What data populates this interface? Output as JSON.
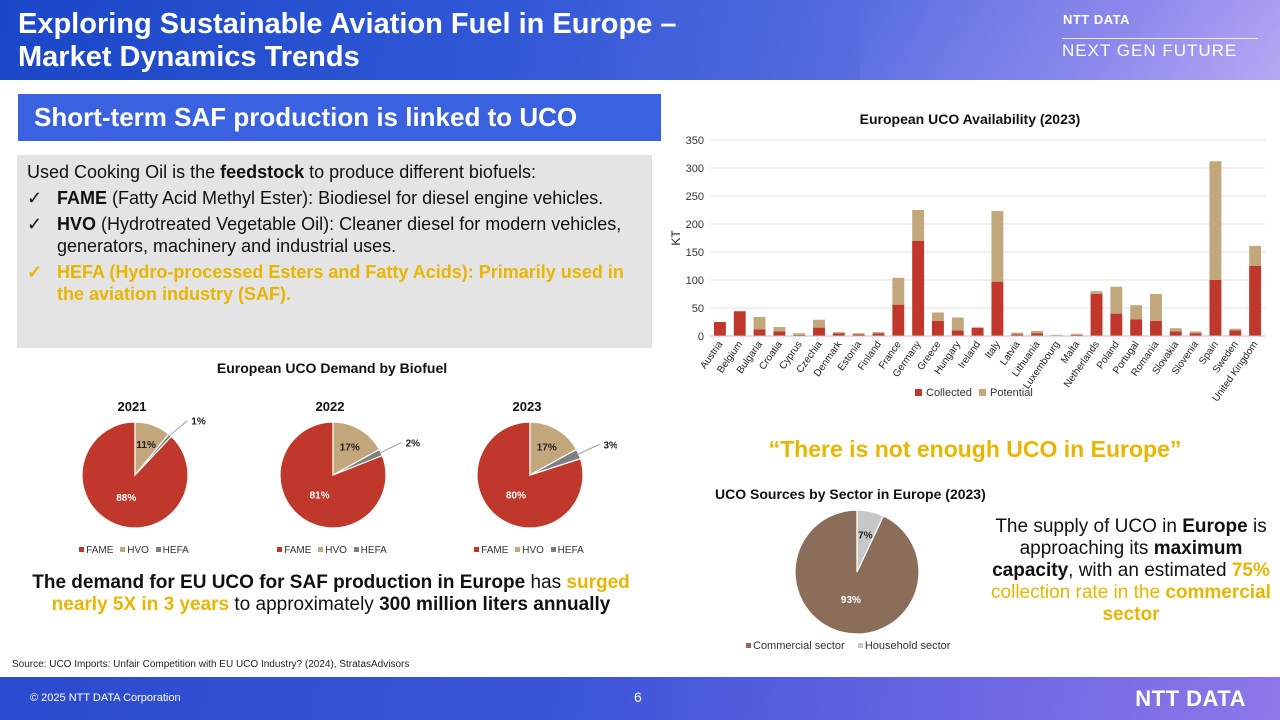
{
  "header": {
    "title_line1": "Exploring Sustainable Aviation Fuel in Europe –",
    "title_line2": "Market Dynamics Trends",
    "brand": "NTT DATA",
    "tagline": "NEXT GEN FUTURE"
  },
  "left": {
    "banner": "Short-term SAF production is linked to UCO",
    "intro_prefix": "Used Cooking Oil is the ",
    "intro_bold": "feedstock",
    "intro_suffix": " to produce different biofuels:",
    "check": "✓",
    "items": [
      {
        "bold": "FAME",
        "text": " (Fatty Acid Methyl Ester): Biodiesel for diesel engine vehicles."
      },
      {
        "bold": "HVO",
        "text": " (Hydrotreated Vegetable Oil): Cleaner diesel for modern vehicles, generators, machinery and industrial uses."
      },
      {
        "bold": "HEFA (Hydro-processed Esters and Fatty Acids): Primarily used in the aviation industry (SAF).",
        "text": ""
      }
    ],
    "demand_title": "European UCO Demand by Biofuel",
    "demand_text": {
      "p1": "The demand for EU UCO for SAF production in Europe",
      "p2": " has ",
      "p3": "surged nearly 5X in 3 years",
      "p4": " to approximately ",
      "p5": "300 million liters annually"
    },
    "source": "Source: UCO Imports: Unfair Competition with EU UCO Industry? (2024), StratasAdvisors"
  },
  "right": {
    "quote": "“There is not enough UCO in Europe”",
    "supply_text": {
      "p1": "The supply of UCO in ",
      "p2": "Europe",
      "p3": " is approaching its ",
      "p4": "maximum capacity",
      "p5": ", with an estimated ",
      "p6": "75%",
      "p7": " collection rate in the ",
      "p8": "commercial sector"
    }
  },
  "colors": {
    "red": "#c0372b",
    "tan": "#c3a77c",
    "gray": "#7f7f7f",
    "brown": "#8b6e5a",
    "light_gray": "#c7c7c7",
    "gold": "#e8b500"
  },
  "footer": {
    "copyright": "© 2025 NTT DATA Corporation",
    "page": "6",
    "logo": "NTT DATA"
  },
  "chart_data": [
    {
      "type": "bar",
      "stacked": true,
      "title": "European UCO Availability (2023)",
      "ylabel": "KT",
      "xlabel": "",
      "ylim": [
        0,
        350
      ],
      "yticks": [
        0,
        50,
        100,
        150,
        200,
        250,
        300,
        350
      ],
      "categories": [
        "Austria",
        "Belgium",
        "Bulgaria",
        "Croatia",
        "Cyprus",
        "Czechia",
        "Denmark",
        "Estonia",
        "Finland",
        "France",
        "Germany",
        "Greece",
        "Hungary",
        "Ireland",
        "Italy",
        "Latvia",
        "Lithuania",
        "Luxembourg",
        "Malta",
        "Netherlands",
        "Poland",
        "Portugal",
        "Romania",
        "Slovakia",
        "Slovenia",
        "Spain",
        "Sweden",
        "United Kingdom"
      ],
      "series": [
        {
          "name": "Collected",
          "values": [
            25,
            44,
            12,
            8,
            2,
            15,
            5,
            3,
            5,
            56,
            170,
            27,
            10,
            15,
            97,
            3,
            5,
            1,
            2,
            75,
            40,
            30,
            27,
            8,
            5,
            100,
            10,
            125
          ]
        },
        {
          "name": "Potential",
          "values": [
            0,
            1,
            22,
            8,
            3,
            14,
            2,
            2,
            2,
            48,
            55,
            15,
            23,
            0,
            126,
            3,
            4,
            1,
            2,
            5,
            48,
            25,
            48,
            6,
            3,
            212,
            3,
            36
          ]
        }
      ],
      "legend": [
        "Collected",
        "Potential"
      ]
    },
    {
      "type": "pie",
      "title": "2021",
      "labels": [
        "FAME",
        "HVO",
        "HEFA"
      ],
      "values": [
        88,
        11,
        1
      ],
      "value_labels": [
        "88%",
        "11%",
        "1%"
      ],
      "legend": [
        "FAME",
        "HVO",
        "HEFA"
      ]
    },
    {
      "type": "pie",
      "title": "2022",
      "labels": [
        "FAME",
        "HVO",
        "HEFA"
      ],
      "values": [
        81,
        17,
        2
      ],
      "value_labels": [
        "81%",
        "17%",
        "2%"
      ],
      "legend": [
        "FAME",
        "HVO",
        "HEFA"
      ]
    },
    {
      "type": "pie",
      "title": "2023",
      "labels": [
        "FAME",
        "HVO",
        "HEFA"
      ],
      "values": [
        80,
        17,
        3
      ],
      "value_labels": [
        "80%",
        "17%",
        "3%"
      ],
      "legend": [
        "FAME",
        "HVO",
        "HEFA"
      ]
    },
    {
      "type": "pie",
      "title": "UCO Sources by Sector in Europe (2023)",
      "labels": [
        "Commercial sector",
        "Household sector"
      ],
      "values": [
        93,
        7
      ],
      "value_labels": [
        "93%",
        "7%"
      ],
      "legend": [
        "Commercial sector",
        "Household sector"
      ]
    }
  ]
}
